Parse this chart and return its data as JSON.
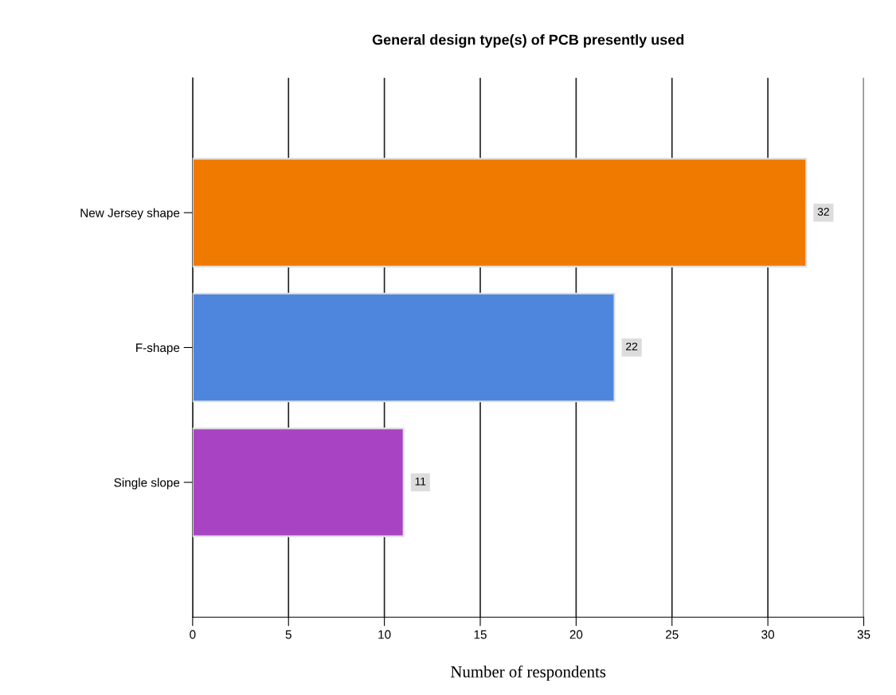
{
  "chart_data": {
    "type": "bar",
    "orientation": "horizontal",
    "title": "General design type(s) of PCB presently used",
    "xlabel": "Number of respondents",
    "categories": [
      "New Jersey shape",
      "F-shape",
      "Single slope"
    ],
    "values": [
      32,
      22,
      11
    ],
    "colors": [
      "#f07a00",
      "#4f86dd",
      "#a844c4"
    ],
    "xlim": [
      0,
      35
    ],
    "xticks": [
      0,
      5,
      10,
      15,
      20,
      25,
      30,
      35
    ],
    "grid": "x",
    "data_labels": true
  }
}
